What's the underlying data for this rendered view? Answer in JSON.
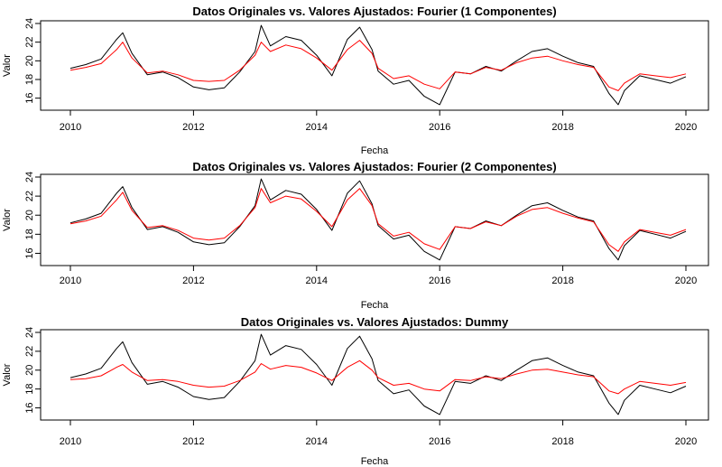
{
  "chart_data": [
    {
      "type": "line",
      "title": "Datos Originales vs. Valores Ajustados: Fourier (1 Componentes)",
      "xlabel": "Fecha",
      "ylabel": "Valor",
      "xlim": [
        2010,
        2020
      ],
      "ylim": [
        15,
        24
      ],
      "xticks": [
        "2010",
        "2012",
        "2014",
        "2016",
        "2018",
        "2020"
      ],
      "yticks": [
        "16",
        "18",
        "20",
        "22",
        "24"
      ],
      "series": [
        {
          "color": "#000000",
          "x": [
            2010.0,
            2010.25,
            2010.5,
            2010.75,
            2010.85,
            2011.0,
            2011.25,
            2011.5,
            2011.75,
            2012.0,
            2012.25,
            2012.5,
            2012.75,
            2013.0,
            2013.1,
            2013.25,
            2013.5,
            2013.75,
            2014.0,
            2014.25,
            2014.5,
            2014.7,
            2014.9,
            2015.0,
            2015.25,
            2015.5,
            2015.75,
            2016.0,
            2016.25,
            2016.5,
            2016.75,
            2017.0,
            2017.25,
            2017.5,
            2017.75,
            2018.0,
            2018.25,
            2018.5,
            2018.75,
            2018.9,
            2019.0,
            2019.25,
            2019.5,
            2019.75,
            2020.0
          ],
          "y": [
            19.2,
            19.6,
            20.2,
            22.3,
            23.0,
            20.8,
            18.5,
            18.8,
            18.2,
            17.2,
            16.9,
            17.1,
            18.8,
            21.0,
            23.8,
            21.6,
            22.6,
            22.2,
            20.6,
            18.4,
            22.3,
            23.6,
            21.2,
            18.9,
            17.5,
            17.9,
            16.2,
            15.3,
            18.8,
            18.6,
            19.4,
            18.9,
            20.0,
            21.0,
            21.3,
            20.5,
            19.8,
            19.4,
            16.5,
            15.3,
            16.8,
            18.4,
            18.0,
            17.6,
            18.3
          ]
        },
        {
          "color": "#ff0000",
          "x": [
            2010.0,
            2010.25,
            2010.5,
            2010.75,
            2010.85,
            2011.0,
            2011.25,
            2011.5,
            2011.75,
            2012.0,
            2012.25,
            2012.5,
            2012.75,
            2013.0,
            2013.1,
            2013.25,
            2013.5,
            2013.75,
            2014.0,
            2014.25,
            2014.5,
            2014.7,
            2014.9,
            2015.0,
            2015.25,
            2015.5,
            2015.75,
            2016.0,
            2016.25,
            2016.5,
            2016.75,
            2017.0,
            2017.25,
            2017.5,
            2017.75,
            2018.0,
            2018.25,
            2018.5,
            2018.75,
            2018.9,
            2019.0,
            2019.25,
            2019.5,
            2019.75,
            2020.0
          ],
          "y": [
            19.0,
            19.3,
            19.7,
            21.2,
            22.0,
            20.3,
            18.7,
            18.9,
            18.5,
            17.9,
            17.8,
            17.9,
            19.0,
            20.6,
            22.0,
            21.0,
            21.7,
            21.3,
            20.3,
            19.0,
            21.2,
            22.2,
            20.8,
            19.2,
            18.1,
            18.4,
            17.5,
            17.0,
            18.8,
            18.6,
            19.3,
            19.0,
            19.8,
            20.3,
            20.5,
            20.0,
            19.6,
            19.3,
            17.2,
            16.8,
            17.6,
            18.6,
            18.4,
            18.2,
            18.6
          ]
        }
      ]
    },
    {
      "type": "line",
      "title": "Datos Originales vs. Valores Ajustados: Fourier (2 Componentes)",
      "xlabel": "Fecha",
      "ylabel": "Valor",
      "xlim": [
        2010,
        2020
      ],
      "ylim": [
        15,
        24
      ],
      "xticks": [
        "2010",
        "2012",
        "2014",
        "2016",
        "2018",
        "2020"
      ],
      "yticks": [
        "16",
        "18",
        "20",
        "22",
        "24"
      ],
      "series": [
        {
          "color": "#000000",
          "x": [
            2010.0,
            2010.25,
            2010.5,
            2010.75,
            2010.85,
            2011.0,
            2011.25,
            2011.5,
            2011.75,
            2012.0,
            2012.25,
            2012.5,
            2012.75,
            2013.0,
            2013.1,
            2013.25,
            2013.5,
            2013.75,
            2014.0,
            2014.25,
            2014.5,
            2014.7,
            2014.9,
            2015.0,
            2015.25,
            2015.5,
            2015.75,
            2016.0,
            2016.25,
            2016.5,
            2016.75,
            2017.0,
            2017.25,
            2017.5,
            2017.75,
            2018.0,
            2018.25,
            2018.5,
            2018.75,
            2018.9,
            2019.0,
            2019.25,
            2019.5,
            2019.75,
            2020.0
          ],
          "y": [
            19.2,
            19.6,
            20.2,
            22.3,
            23.0,
            20.8,
            18.5,
            18.8,
            18.2,
            17.2,
            16.9,
            17.1,
            18.8,
            21.0,
            23.8,
            21.6,
            22.6,
            22.2,
            20.6,
            18.4,
            22.3,
            23.6,
            21.2,
            18.9,
            17.5,
            17.9,
            16.2,
            15.3,
            18.8,
            18.6,
            19.4,
            18.9,
            20.0,
            21.0,
            21.3,
            20.5,
            19.8,
            19.4,
            16.5,
            15.3,
            16.8,
            18.4,
            18.0,
            17.6,
            18.3
          ]
        },
        {
          "color": "#ff0000",
          "x": [
            2010.0,
            2010.25,
            2010.5,
            2010.75,
            2010.85,
            2011.0,
            2011.25,
            2011.5,
            2011.75,
            2012.0,
            2012.25,
            2012.5,
            2012.75,
            2013.0,
            2013.1,
            2013.25,
            2013.5,
            2013.75,
            2014.0,
            2014.25,
            2014.5,
            2014.7,
            2014.9,
            2015.0,
            2015.25,
            2015.5,
            2015.75,
            2016.0,
            2016.25,
            2016.5,
            2016.75,
            2017.0,
            2017.25,
            2017.5,
            2017.75,
            2018.0,
            2018.25,
            2018.5,
            2018.75,
            2018.9,
            2019.0,
            2019.25,
            2019.5,
            2019.75,
            2020.0
          ],
          "y": [
            19.1,
            19.4,
            19.9,
            21.6,
            22.4,
            20.5,
            18.7,
            18.9,
            18.4,
            17.6,
            17.4,
            17.6,
            18.9,
            20.8,
            22.8,
            21.3,
            22.0,
            21.7,
            20.4,
            18.8,
            21.6,
            22.8,
            21.0,
            19.1,
            17.8,
            18.2,
            17.0,
            16.4,
            18.8,
            18.6,
            19.3,
            18.9,
            19.9,
            20.6,
            20.8,
            20.2,
            19.7,
            19.3,
            16.9,
            16.2,
            17.2,
            18.5,
            18.2,
            17.9,
            18.5
          ]
        }
      ]
    },
    {
      "type": "line",
      "title": "Datos Originales vs. Valores Ajustados: Dummy",
      "xlabel": "Fecha",
      "ylabel": "Valor",
      "xlim": [
        2010,
        2020
      ],
      "ylim": [
        15,
        24
      ],
      "xticks": [
        "2010",
        "2012",
        "2014",
        "2016",
        "2018",
        "2020"
      ],
      "yticks": [
        "16",
        "18",
        "20",
        "22",
        "24"
      ],
      "series": [
        {
          "color": "#000000",
          "x": [
            2010.0,
            2010.25,
            2010.5,
            2010.75,
            2010.85,
            2011.0,
            2011.25,
            2011.5,
            2011.75,
            2012.0,
            2012.25,
            2012.5,
            2012.75,
            2013.0,
            2013.1,
            2013.25,
            2013.5,
            2013.75,
            2014.0,
            2014.25,
            2014.5,
            2014.7,
            2014.9,
            2015.0,
            2015.25,
            2015.5,
            2015.75,
            2016.0,
            2016.25,
            2016.5,
            2016.75,
            2017.0,
            2017.25,
            2017.5,
            2017.75,
            2018.0,
            2018.25,
            2018.5,
            2018.75,
            2018.9,
            2019.0,
            2019.25,
            2019.5,
            2019.75,
            2020.0
          ],
          "y": [
            19.2,
            19.6,
            20.2,
            22.3,
            23.0,
            20.8,
            18.5,
            18.8,
            18.2,
            17.2,
            16.9,
            17.1,
            18.8,
            21.0,
            23.8,
            21.6,
            22.6,
            22.2,
            20.6,
            18.4,
            22.3,
            23.6,
            21.2,
            18.9,
            17.5,
            17.9,
            16.2,
            15.3,
            18.8,
            18.6,
            19.4,
            18.9,
            20.0,
            21.0,
            21.3,
            20.5,
            19.8,
            19.4,
            16.5,
            15.3,
            16.8,
            18.4,
            18.0,
            17.6,
            18.3
          ]
        },
        {
          "color": "#ff0000",
          "x": [
            2010.0,
            2010.25,
            2010.5,
            2010.75,
            2010.85,
            2011.0,
            2011.25,
            2011.5,
            2011.75,
            2012.0,
            2012.25,
            2012.5,
            2012.75,
            2013.0,
            2013.1,
            2013.25,
            2013.5,
            2013.75,
            2014.0,
            2014.25,
            2014.5,
            2014.7,
            2014.9,
            2015.0,
            2015.25,
            2015.5,
            2015.75,
            2016.0,
            2016.25,
            2016.5,
            2016.75,
            2017.0,
            2017.25,
            2017.5,
            2017.75,
            2018.0,
            2018.25,
            2018.5,
            2018.75,
            2018.9,
            2019.0,
            2019.25,
            2019.5,
            2019.75,
            2020.0
          ],
          "y": [
            19.0,
            19.1,
            19.4,
            20.3,
            20.6,
            19.8,
            18.9,
            19.0,
            18.8,
            18.4,
            18.2,
            18.3,
            18.9,
            19.8,
            20.7,
            20.1,
            20.5,
            20.3,
            19.7,
            18.9,
            20.3,
            21.0,
            20.0,
            19.2,
            18.4,
            18.6,
            18.0,
            17.8,
            19.0,
            18.9,
            19.3,
            19.1,
            19.6,
            20.0,
            20.1,
            19.8,
            19.5,
            19.3,
            17.8,
            17.5,
            18.0,
            18.8,
            18.6,
            18.4,
            18.7
          ]
        }
      ]
    }
  ]
}
